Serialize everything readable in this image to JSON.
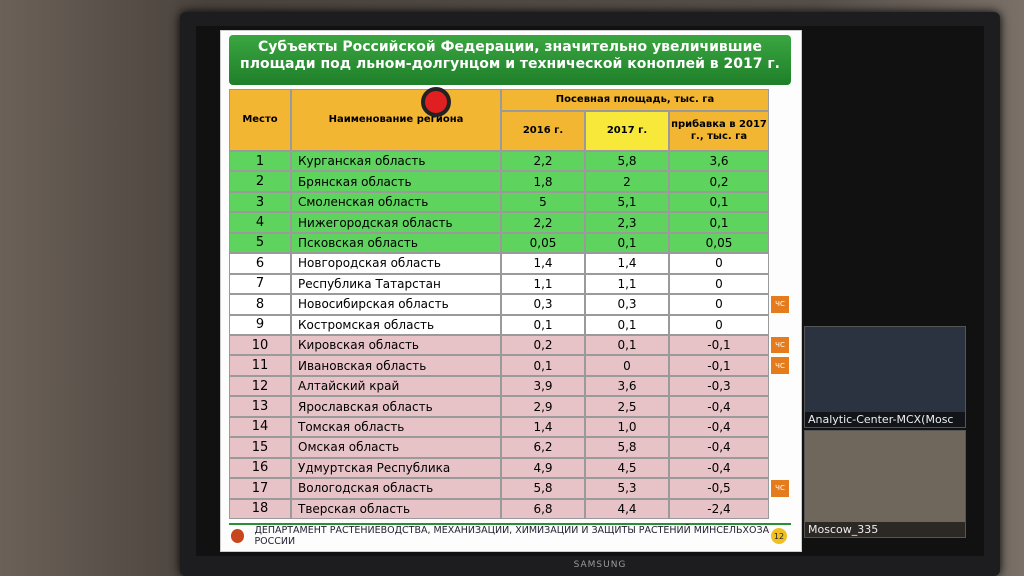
{
  "slide": {
    "title": "Субъекты Российской Федерации, значительно увеличившие площади под льном-долгунцом и технической коноплей в 2017 г.",
    "table": {
      "headers": {
        "place": "Место",
        "region": "Наименование региона",
        "area": "Посевная площадь, тыс. га",
        "y2016": "2016 г.",
        "y2017": "2017 г.",
        "delta": "прибавка в 2017 г., тыс. га"
      },
      "rows": [
        [
          "1",
          "Курганская область",
          "2,2",
          "5,8",
          "3,6",
          null
        ],
        [
          "2",
          "Брянская область",
          "1,8",
          "2",
          "0,2",
          null
        ],
        [
          "3",
          "Смоленская область",
          "5",
          "5,1",
          "0,1",
          null
        ],
        [
          "4",
          "Нижегородская область",
          "2,2",
          "2,3",
          "0,1",
          null
        ],
        [
          "5",
          "Псковская область",
          "0,05",
          "0,1",
          "0,05",
          null
        ],
        [
          "6",
          "Новгородская область",
          "1,4",
          "1,4",
          "0",
          null
        ],
        [
          "7",
          "Республика Татарстан",
          "1,1",
          "1,1",
          "0",
          null
        ],
        [
          "8",
          "Новосибирская область",
          "0,3",
          "0,3",
          "0",
          "ЧС"
        ],
        [
          "9",
          "Костромская область",
          "0,1",
          "0,1",
          "0",
          null
        ],
        [
          "10",
          "Кировская область",
          "0,2",
          "0,1",
          "-0,1",
          "ЧС"
        ],
        [
          "11",
          "Ивановская область",
          "0,1",
          "0",
          "-0,1",
          "ЧС"
        ],
        [
          "12",
          "Алтайский край",
          "3,9",
          "3,6",
          "-0,3",
          null
        ],
        [
          "13",
          "Ярославская область",
          "2,9",
          "2,5",
          "-0,4",
          null
        ],
        [
          "14",
          "Томская область",
          "1,4",
          "1,0",
          "-0,4",
          null
        ],
        [
          "15",
          "Омская область",
          "6,2",
          "5,8",
          "-0,4",
          null
        ],
        [
          "16",
          "Удмуртская Республика",
          "4,9",
          "4,5",
          "-0,4",
          null
        ],
        [
          "17",
          "Вологодская область",
          "5,8",
          "5,3",
          "-0,5",
          "ЧС"
        ],
        [
          "18",
          "Тверская область",
          "6,8",
          "4,4",
          "-2,4",
          null
        ]
      ]
    },
    "footer": "ДЕПАРТАМЕНТ РАСТЕНИЕВОДСТВА, МЕХАНИЗАЦИИ, ХИМИЗАЦИИ И ЗАЩИТЫ РАСТЕНИЙ МИНСЕЛЬХОЗА РОССИИ",
    "page_number": "12"
  },
  "videos": [
    "Analytic-Center-MCX(Mosc",
    "Moscow_335"
  ],
  "brand": "SAMSUNG"
}
